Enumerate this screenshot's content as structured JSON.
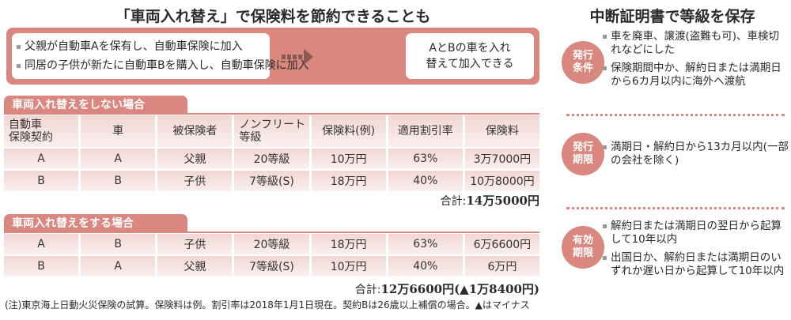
{
  "left": {
    "title": "「車両入れ替え」で保険料を節約できることも",
    "scenario": [
      "父親が自動車Aを保有し、自動車保険に加入",
      "同居の子供が新たに自動車Bを購入し、自動車保険に加入"
    ],
    "result": [
      "AとBの車を入れ",
      "替えて加入できる"
    ],
    "headers": [
      [
        "自動車",
        "保険契約"
      ],
      [
        "車"
      ],
      [
        "被保険者"
      ],
      [
        "ノンフリート",
        "等級"
      ],
      [
        "保険料(例)"
      ],
      [
        "適用割引率"
      ],
      [
        "保険料"
      ]
    ],
    "section1": {
      "label": "車両入れ替えをしない場合",
      "rows": [
        [
          "A",
          "A",
          "父親",
          "20等級",
          "10万円",
          "63%",
          "3万7000円"
        ],
        [
          "B",
          "B",
          "子供",
          "7等級(S)",
          "18万円",
          "40%",
          "10万8000円"
        ]
      ],
      "total_label": "合計:",
      "total": "14万5000円"
    },
    "section2": {
      "label": "車両入れ替えをする場合",
      "rows": [
        [
          "A",
          "B",
          "子供",
          "20等級",
          "18万円",
          "63%",
          "6万6600円"
        ],
        [
          "B",
          "A",
          "父親",
          "7等級(S)",
          "10万円",
          "40%",
          "6万円"
        ]
      ],
      "total_label": "合計:",
      "total": "12万6600円(▲1万8400円)"
    },
    "note": "(注)東京海上日動火災保険の試算。保険料は例。割引率は2018年1月1日現在。契約Bは26歳以上補償の場合。▲はマイナス"
  },
  "right": {
    "title": "中断証明書で等級を保存",
    "items": [
      {
        "badge": [
          "発行",
          "条件"
        ],
        "points": [
          "車を廃車、譲渡(盗難も可)、車検切れなどにした",
          "保険期間中か、解約日または満期日から6カ月以内に海外へ渡航"
        ]
      },
      {
        "badge": [
          "発行",
          "期限"
        ],
        "points": [
          "満期日・解約日から13カ月以内(一部の会社を除く)"
        ]
      },
      {
        "badge": [
          "有効",
          "期限"
        ],
        "points": [
          "解約日または満期日の翌日から起算して10年以内",
          "出国日か、解約日または満期日のいずれか遅い日から起算して10年以内"
        ]
      }
    ]
  },
  "colors": {
    "accent": "#d9877f",
    "row": "#f1d6d3"
  }
}
